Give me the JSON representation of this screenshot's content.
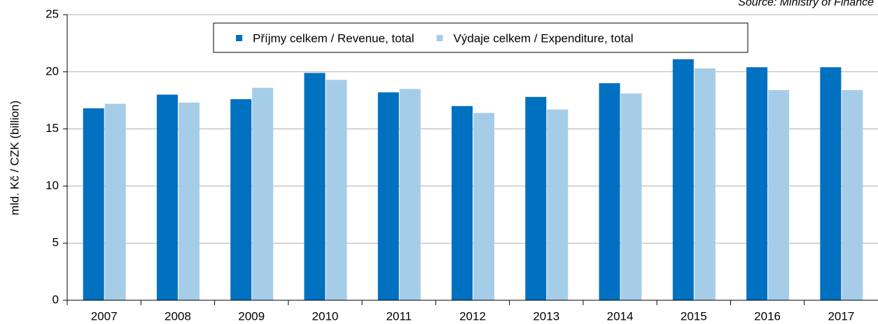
{
  "chart_data": {
    "type": "bar",
    "source": "Source: Ministry of Finance",
    "y_label": "mld. Kč / CZK (billion)",
    "categories": [
      "2007",
      "2008",
      "2009",
      "2010",
      "2011",
      "2012",
      "2013",
      "2014",
      "2015",
      "2016",
      "2017"
    ],
    "series": [
      {
        "name": "Příjmy  celkem / Revenue, total",
        "color": "#0070c0",
        "values": [
          16.8,
          18.0,
          17.6,
          19.9,
          18.2,
          17.0,
          17.8,
          19.0,
          21.1,
          20.4,
          20.4
        ]
      },
      {
        "name": "Výdaje celkem / Expenditure, total",
        "color": "#a6cde8",
        "values": [
          17.2,
          17.3,
          18.6,
          19.3,
          18.5,
          16.4,
          16.7,
          18.1,
          20.3,
          18.4,
          18.4
        ]
      }
    ],
    "ylim": [
      0,
      25
    ],
    "yticks": [
      0,
      5,
      10,
      15,
      20,
      25
    ],
    "grid": true,
    "legend": "top"
  }
}
